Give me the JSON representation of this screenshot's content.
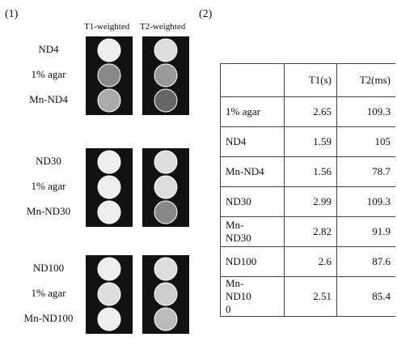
{
  "panel1_label": "(1)",
  "panel2_label": "(2)",
  "column_headers": [
    "T1-weighted",
    "T2-weighted"
  ],
  "image_groups": [
    {
      "labels": [
        "ND4",
        "1% agar",
        "Mn-ND4"
      ]
    },
    {
      "labels": [
        "ND30",
        "1% agar",
        "Mn-ND30"
      ]
    },
    {
      "labels": [
        "ND100",
        "1% agar",
        "Mn-ND100"
      ]
    }
  ],
  "table": {
    "header": [
      "T1(s)",
      "T2(ms)"
    ],
    "rows": [
      [
        "1% agar",
        2.65,
        109.3
      ],
      [
        "ND4",
        1.59,
        105
      ],
      [
        "Mn-ND4",
        1.56,
        78.7
      ],
      [
        "ND30",
        2.99,
        109.3
      ],
      [
        "Mn-ND30",
        2.82,
        91.9
      ],
      [
        "ND100",
        2.6,
        87.6
      ],
      [
        "Mn-ND100",
        2.51,
        85.4
      ]
    ]
  }
}
